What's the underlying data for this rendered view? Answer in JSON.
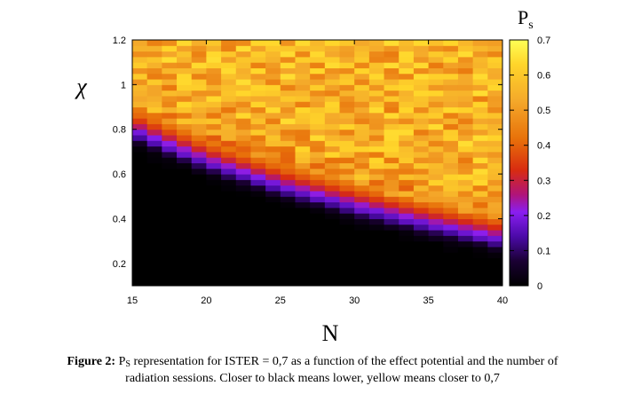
{
  "chart_data": {
    "type": "heatmap",
    "title": "",
    "xlabel": "N",
    "ylabel": "χ",
    "colorbar_label": {
      "main": "P",
      "sub": "s"
    },
    "x": {
      "min": 15,
      "max": 40,
      "step": 1
    },
    "y": {
      "min": 0.1,
      "max": 1.2,
      "step": 0.025
    },
    "xlim": [
      15,
      40
    ],
    "ylim": [
      0.1,
      1.2
    ],
    "x_ticks": [
      15,
      20,
      25,
      30,
      35,
      40
    ],
    "y_ticks": [
      0.2,
      0.4,
      0.6,
      0.8,
      1,
      1.2
    ],
    "colorbar_ticks": [
      0,
      0.1,
      0.2,
      0.3,
      0.4,
      0.5,
      0.6,
      0.7
    ],
    "colorbar_range": [
      0,
      0.7
    ],
    "colormap": [
      "#000000",
      "#1a0033",
      "#4b0aa8",
      "#8a1ef0",
      "#b0147a",
      "#d82c10",
      "#e8720a",
      "#f4a82a",
      "#ffd52a",
      "#ffff55"
    ],
    "boundary": {
      "description_values": "chi value of the sharp transition at each N (approximate)",
      "points": [
        [
          15,
          0.8
        ],
        [
          20,
          0.66
        ],
        [
          25,
          0.55
        ],
        [
          30,
          0.46
        ],
        [
          35,
          0.38
        ],
        [
          40,
          0.31
        ]
      ]
    },
    "plateau_value": 0.55,
    "low_value": 0.0,
    "grid": false,
    "legend": "colorbar-right"
  },
  "caption": {
    "label": "Figure 2:",
    "p": "P",
    "p_sub": "S",
    "line1_rest": " representation for ISTER = 0,7 as a function of the effect potential and the number of",
    "line2": "radiation sessions. Closer to black means lower, yellow means closer to 0,7"
  }
}
